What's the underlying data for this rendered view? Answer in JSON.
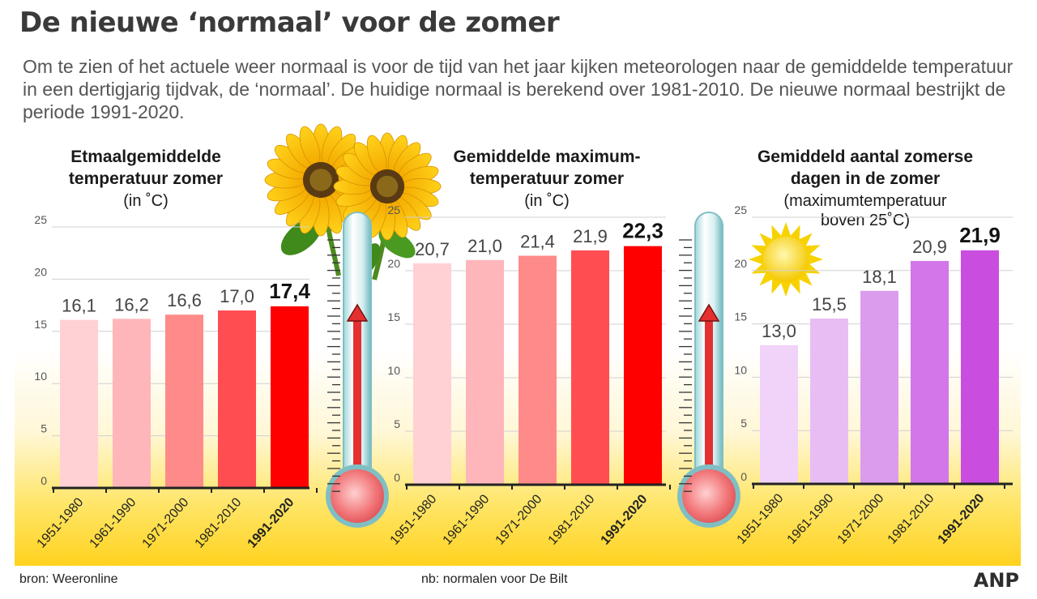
{
  "title": "De nieuwe ‘normaal’ voor de zomer",
  "intro": "Om te zien of het actuele weer normaal is voor de tijd van het jaar kijken meteorologen naar de gemiddelde temperatuur in een dertigjarig tijdvak, de ‘normaal’. De huidige normaal is berekend over 1981-2010. De nieuwe normaal bestrijkt de periode 1991-2020.",
  "footer": {
    "source": "bron:  Weeronline",
    "note": "nb: normalen voor De Bilt",
    "brand": "ANP"
  },
  "chart_data": [
    {
      "type": "bar",
      "title": "Etmaalgemiddelde temperatuur zomer",
      "title_lines": [
        "Etmaalgemiddelde",
        "temperatuur zomer"
      ],
      "subtitle_lines": [
        "(in ˚C)"
      ],
      "categories": [
        "1951-1980",
        "1961-1990",
        "1971-2000",
        "1981-2010",
        "1991-2020"
      ],
      "values": [
        16.1,
        16.2,
        16.6,
        17.0,
        17.4
      ],
      "value_labels": [
        "16,1",
        "16,2",
        "16,6",
        "17,0",
        "17,4"
      ],
      "ylim": [
        0,
        25
      ],
      "yticks": [
        0,
        5,
        10,
        15,
        20,
        25
      ],
      "highlight_index": 4,
      "colors": [
        "#ffd1d4",
        "#ffb6ba",
        "#ff8a8a",
        "#ff4d52",
        "#ff0000"
      ]
    },
    {
      "type": "bar",
      "title": "Gemiddelde maximum-temperatuur zomer",
      "title_lines": [
        "Gemiddelde maximum-",
        "temperatuur zomer"
      ],
      "subtitle_lines": [
        "(in ˚C)"
      ],
      "categories": [
        "1951-1980",
        "1961-1990",
        "1971-2000",
        "1981-2010",
        "1991-2020"
      ],
      "values": [
        20.7,
        21.0,
        21.4,
        21.9,
        22.3
      ],
      "value_labels": [
        "20,7",
        "21,0",
        "21,4",
        "21,9",
        "22,3"
      ],
      "ylim": [
        0,
        25
      ],
      "yticks": [
        0,
        5,
        10,
        15,
        20,
        25
      ],
      "highlight_index": 4,
      "colors": [
        "#ffd1d4",
        "#ffb6ba",
        "#ff8a8a",
        "#ff4d52",
        "#ff0000"
      ]
    },
    {
      "type": "bar",
      "title": "Gemiddeld aantal zomerse dagen in de zomer",
      "title_lines": [
        "Gemiddeld aantal zomerse",
        "dagen in de zomer"
      ],
      "subtitle_lines": [
        "(maximumtemperatuur",
        "boven 25˚C)"
      ],
      "categories": [
        "1951-1980",
        "1961-1990",
        "1971-2000",
        "1981-2010",
        "1991-2020"
      ],
      "values": [
        13.0,
        15.5,
        18.1,
        20.9,
        21.9
      ],
      "value_labels": [
        "13,0",
        "15,5",
        "18,1",
        "20,9",
        "21,9"
      ],
      "ylim": [
        0,
        25
      ],
      "yticks": [
        0,
        5,
        10,
        15,
        20,
        25
      ],
      "highlight_index": 4,
      "colors": [
        "#f1d2f8",
        "#e8bdf4",
        "#dc9cee",
        "#d276ea",
        "#c94ee0"
      ]
    }
  ],
  "decor": {
    "left_icon": "sunflower-icon",
    "thermometer_icon": "thermometer-icon",
    "sun_icon": "sun-icon"
  }
}
